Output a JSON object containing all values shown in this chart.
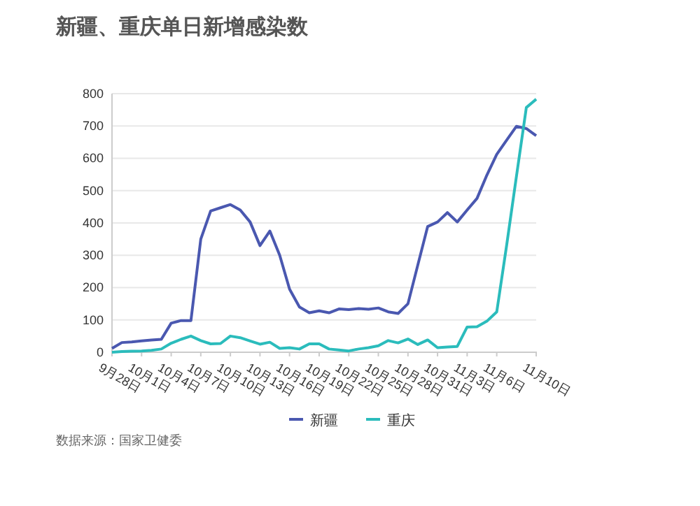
{
  "chart_data": {
    "type": "line",
    "title": "新疆、重庆单日新增感染数",
    "x": [
      "--09-28",
      "--09-29",
      "--09-30",
      "--10-01",
      "--10-02",
      "--10-03",
      "--10-04",
      "--10-05",
      "--10-06",
      "--10-07",
      "--10-08",
      "--10-09",
      "--10-10",
      "--10-11",
      "--10-12",
      "--10-13",
      "--10-14",
      "--10-15",
      "--10-16",
      "--10-17",
      "--10-18",
      "--10-19",
      "--10-20",
      "--10-21",
      "--10-22",
      "--10-23",
      "--10-24",
      "--10-25",
      "--10-26",
      "--10-27",
      "--10-28",
      "--10-29",
      "--10-30",
      "--10-31",
      "--11-01",
      "--11-02",
      "--11-03",
      "--11-04",
      "--11-05",
      "--11-06",
      "--11-07",
      "--11-08",
      "--11-09",
      "--11-10"
    ],
    "series": [
      {
        "name": "新疆",
        "color": "#4a58b0",
        "values": [
          12,
          30,
          32,
          35,
          38,
          40,
          90,
          98,
          98,
          350,
          437,
          447,
          457,
          440,
          403,
          330,
          375,
          300,
          195,
          140,
          122,
          128,
          122,
          134,
          132,
          135,
          133,
          137,
          125,
          120,
          150,
          270,
          389,
          403,
          432,
          403,
          440,
          476,
          548,
          612,
          656,
          699,
          692,
          670
        ]
      },
      {
        "name": "重庆",
        "color": "#2bbcbc",
        "values": [
          0,
          2,
          3,
          4,
          6,
          10,
          28,
          40,
          50,
          36,
          26,
          27,
          50,
          45,
          35,
          25,
          31,
          12,
          14,
          10,
          26,
          26,
          10,
          7,
          4,
          10,
          14,
          20,
          36,
          29,
          41,
          24,
          38,
          14,
          16,
          18,
          78,
          79,
          96,
          125,
          330,
          545,
          757,
          783
        ]
      }
    ],
    "xlim": [
      "--09-28",
      "--11-10"
    ],
    "xticks": [
      {
        "value": "--09-28",
        "label": "9月28日"
      },
      {
        "value": "--10-01",
        "label": "10月1日"
      },
      {
        "value": "--10-04",
        "label": "10月4日"
      },
      {
        "value": "--10-07",
        "label": "10月7日"
      },
      {
        "value": "--10-10",
        "label": "10月10日"
      },
      {
        "value": "--10-13",
        "label": "10月13日"
      },
      {
        "value": "--10-16",
        "label": "10月16日"
      },
      {
        "value": "--10-19",
        "label": "10月19日"
      },
      {
        "value": "--10-22",
        "label": "10月22日"
      },
      {
        "value": "--10-25",
        "label": "10月25日"
      },
      {
        "value": "--10-28",
        "label": "10月28日"
      },
      {
        "value": "--10-31",
        "label": "10月31日"
      },
      {
        "value": "--11-03",
        "label": "11月3日"
      },
      {
        "value": "--11-06",
        "label": "11月6日"
      },
      {
        "value": "--11-10",
        "label": "11月10日"
      }
    ],
    "ylim": [
      0,
      800
    ],
    "yticks": [
      0,
      100,
      200,
      300,
      400,
      500,
      600,
      700,
      800
    ],
    "grid": "y",
    "legend": "bottom",
    "marker": "none",
    "line_style": "solid",
    "annotations": [
      "数据来源：国家卫健委"
    ]
  }
}
